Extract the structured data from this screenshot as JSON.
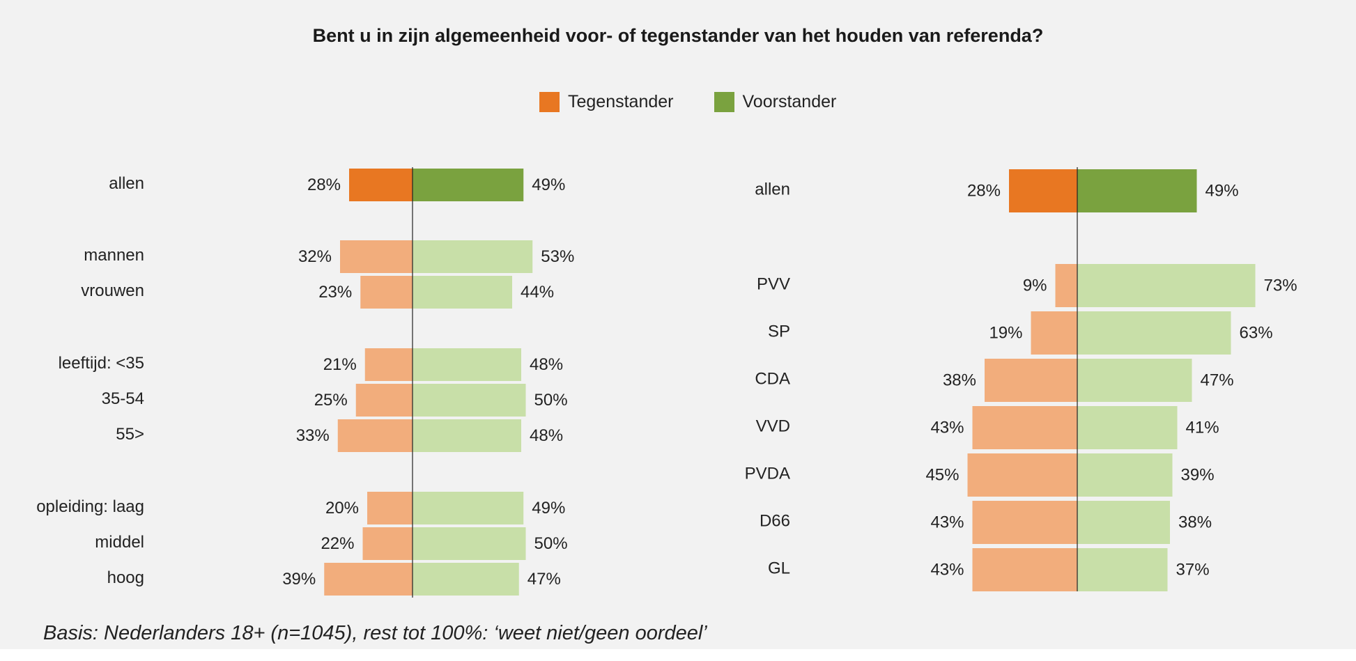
{
  "title": "Bent u in zijn algemeenheid voor- of tegenstander van het houden van referenda?",
  "legend": [
    {
      "label": "Tegenstander",
      "color": "#e87722"
    },
    {
      "label": "Voorstander",
      "color": "#7aa23f"
    }
  ],
  "colors": {
    "tegen_strong": "#e87722",
    "voor_strong": "#7aa23f",
    "tegen_light": "#f2ad7c",
    "voor_light": "#c8dfa8",
    "axis": "#222222"
  },
  "footnote": "Basis: Nederlanders 18+ (n=1045), rest tot 100%: ‘weet niet/geen oordeel’",
  "chart_data": [
    {
      "type": "bar",
      "orientation": "diverging-horizontal",
      "categories": [
        "allen",
        "mannen",
        "vrouwen",
        "leeftijd: <35",
        "35-54",
        "55>",
        "opleiding: laag",
        "middel",
        "hoog"
      ],
      "highlight_first": true,
      "series": [
        {
          "name": "Tegenstander",
          "values": [
            28,
            32,
            23,
            21,
            25,
            33,
            20,
            22,
            39
          ]
        },
        {
          "name": "Voorstander",
          "values": [
            49,
            53,
            44,
            48,
            50,
            48,
            49,
            50,
            47
          ]
        }
      ],
      "value_labels": {
        "Tegenstander": [
          "28%",
          "32%",
          "23%",
          "21%",
          "25%",
          "33%",
          "20%",
          "22%",
          "39%"
        ],
        "Voorstander": [
          "49%",
          "53%",
          "44%",
          "48%",
          "50%",
          "48%",
          "49%",
          "50%",
          "47%"
        ]
      },
      "unit": "%"
    },
    {
      "type": "bar",
      "orientation": "diverging-horizontal",
      "categories": [
        "allen",
        "PVV",
        "SP",
        "CDA",
        "VVD",
        "PVDA",
        "D66",
        "GL"
      ],
      "highlight_first": true,
      "series": [
        {
          "name": "Tegenstander",
          "values": [
            28,
            9,
            19,
            38,
            43,
            45,
            43,
            43
          ]
        },
        {
          "name": "Voorstander",
          "values": [
            49,
            73,
            63,
            47,
            41,
            39,
            38,
            37
          ]
        }
      ],
      "value_labels": {
        "Tegenstander": [
          "28%",
          "9%",
          "19%",
          "38%",
          "43%",
          "45%",
          "43%",
          "43%"
        ],
        "Voorstander": [
          "49%",
          "73%",
          "63%",
          "47%",
          "41%",
          "39%",
          "38%",
          "37%"
        ]
      },
      "unit": "%"
    }
  ]
}
